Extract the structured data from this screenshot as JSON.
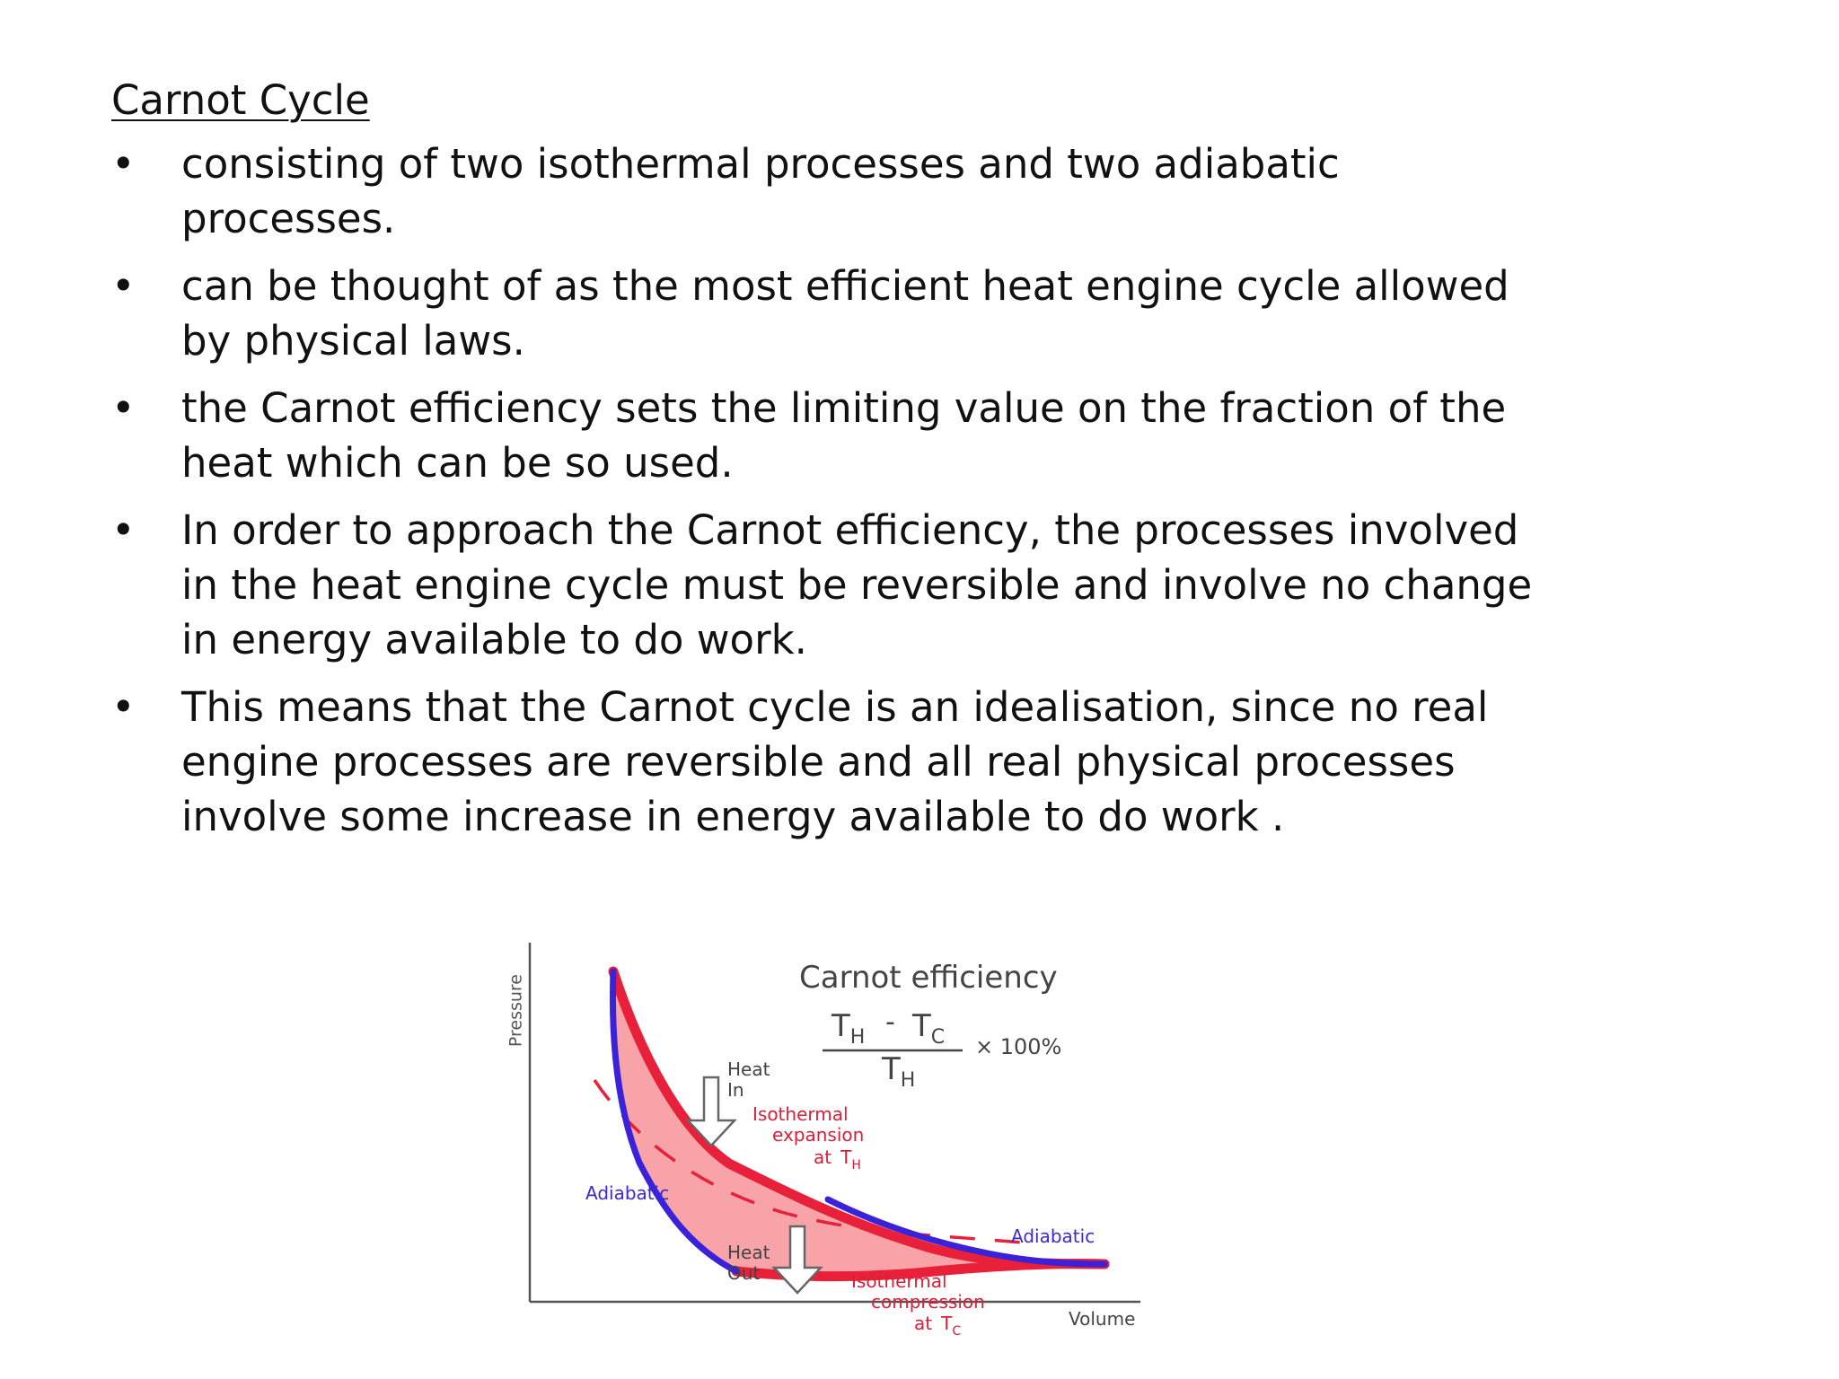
{
  "slide": {
    "title": "Carnot Cycle",
    "bullets": [
      "consisting of two isothermal processes and two adiabatic processes.",
      "can be thought of as the most efficient heat engine cycle allowed by physical laws.",
      "the Carnot efficiency sets the limiting value on the fraction of the heat which can be so used.",
      "In order to approach the Carnot efficiency, the processes involved in the heat engine cycle must be reversible and involve no change in energy available to do work.",
      "This means that the Carnot cycle is an idealisation, since no real engine processes are reversible and all real physical processes involve some increase in energy available to do work ."
    ],
    "bullet_symbol": "•"
  },
  "diagram": {
    "y_axis_label": "Pressure",
    "x_axis_label": "Volume",
    "efficiency_title": "Carnot efficiency",
    "numerator_a": "T",
    "numerator_a_sub": "H",
    "minus": "-",
    "numerator_b": "T",
    "numerator_b_sub": "C",
    "denominator": "T",
    "denominator_sub": "H",
    "multiplier": "× 100%",
    "heat_in_line1": "Heat",
    "heat_in_line2": "In",
    "heat_out_line1": "Heat",
    "heat_out_line2": "Out",
    "iso_exp_line1": "Isothermal",
    "iso_exp_line2": "expansion",
    "iso_exp_line3": "at",
    "iso_exp_T": "T",
    "iso_exp_T_sub": "H",
    "iso_comp_line1": "Isothermal",
    "iso_comp_line2": "compression",
    "iso_comp_line3": "at",
    "iso_comp_T": "T",
    "iso_comp_T_sub": "C",
    "adiabatic_left": "Adiabatic",
    "adiabatic_right": "Adiabatic",
    "colors": {
      "isotherm": "#e8203a",
      "adiabat": "#3a22d8",
      "fill": "#f7a3a8",
      "red_text": "#d8203a",
      "blue_text": "#3a2ad0",
      "dashed": "#e8203a"
    }
  }
}
